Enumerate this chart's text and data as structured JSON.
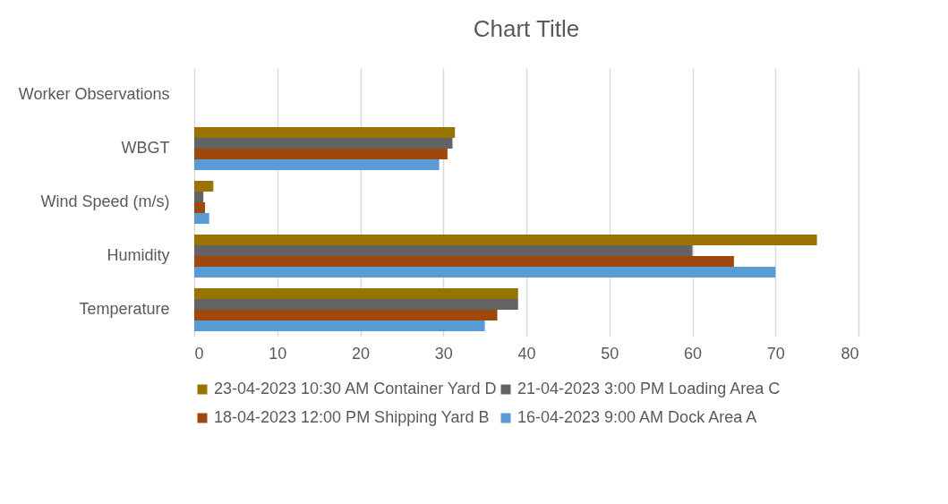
{
  "chart_data": {
    "type": "bar",
    "orientation": "horizontal",
    "title": "Chart Title",
    "categories": [
      "Worker Observations",
      "WBGT",
      "Wind Speed (m/s)",
      "Humidity",
      "Temperature"
    ],
    "series": [
      {
        "name": "23-04-2023 10:30 AM Container Yard D",
        "color": "#997300",
        "values": [
          null,
          31.4,
          2.3,
          75,
          39
        ]
      },
      {
        "name": "21-04-2023 3:00 PM Loading Area C",
        "color": "#636363",
        "values": [
          null,
          31.1,
          1.1,
          60,
          39
        ]
      },
      {
        "name": "18-04-2023 12:00 PM Shipping Yard B",
        "color": "#9e480e",
        "values": [
          null,
          30.5,
          1.3,
          65,
          36.5
        ]
      },
      {
        "name": "16-04-2023 9:00 AM Dock Area A",
        "color": "#5b9bd5",
        "values": [
          null,
          29.5,
          1.8,
          70,
          35
        ]
      }
    ],
    "xlim": [
      0,
      80
    ],
    "xticks": [
      0,
      10,
      20,
      30,
      40,
      50,
      60,
      70,
      80
    ],
    "grid": "x",
    "legend": "bottom"
  }
}
